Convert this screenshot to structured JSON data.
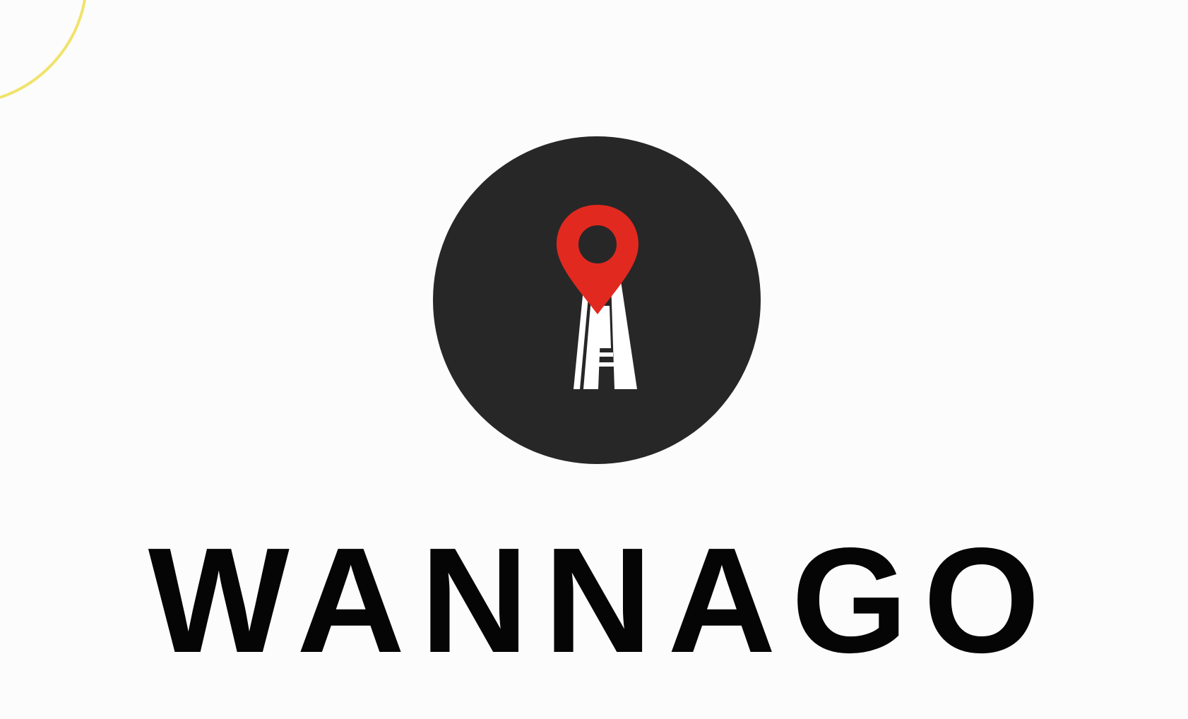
{
  "app": {
    "brand_name": "WANNAGO"
  },
  "logo": {
    "icon": "location-pin-road-icon",
    "circle_color": "#272727",
    "pin_color": "#e2291f",
    "road_color": "#ffffff"
  },
  "decoration": {
    "arc_color": "#f1e36a"
  }
}
